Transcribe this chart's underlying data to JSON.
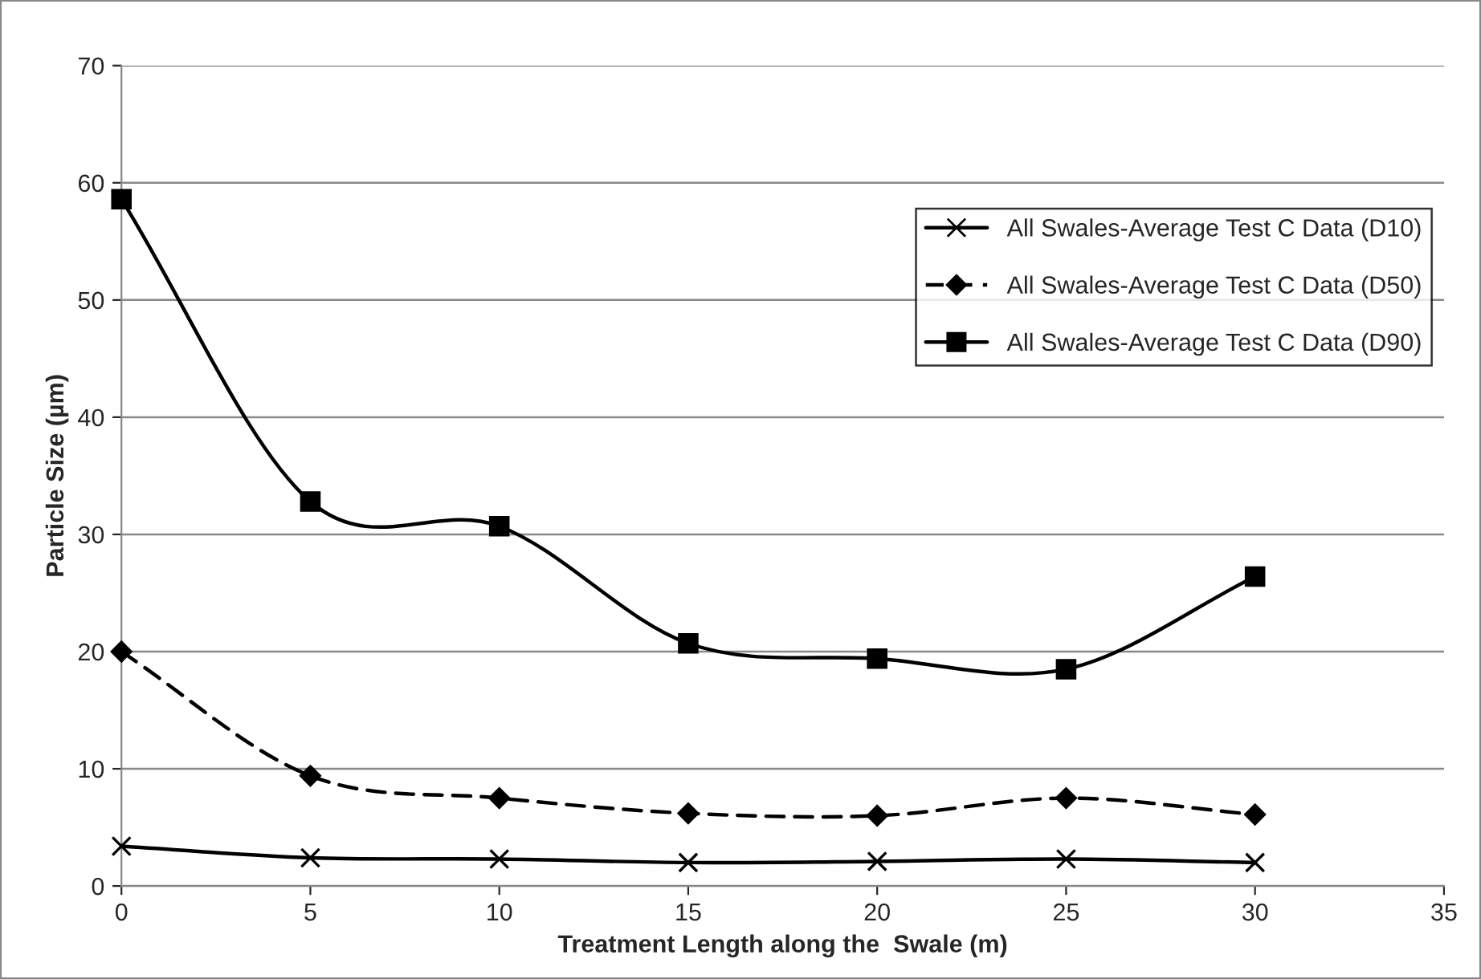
{
  "chart_data": {
    "type": "line",
    "xlabel": "Treatment Length along the  Swale (m)",
    "ylabel": "Particle Size (µm)",
    "x": [
      0,
      5,
      10,
      15,
      20,
      25,
      30
    ],
    "series": [
      {
        "name": "All Swales-Average Test C Data (D10)",
        "color": "#000000",
        "marker": "cross",
        "line_style": "solid",
        "values": [
          3.4,
          2.4,
          2.3,
          2.0,
          2.1,
          2.3,
          2.0
        ]
      },
      {
        "name": "All Swales-Average Test C Data (D50)",
        "color": "#000000",
        "marker": "diamond",
        "line_style": "dashed",
        "values": [
          20.0,
          9.4,
          7.5,
          6.2,
          6.0,
          7.5,
          6.1
        ]
      },
      {
        "name": "All Swales-Average Test C Data (D90)",
        "color": "#000000",
        "marker": "square",
        "line_style": "solid",
        "values": [
          58.6,
          32.8,
          30.7,
          20.7,
          19.4,
          18.5,
          26.4
        ]
      }
    ],
    "xlim": [
      0,
      35
    ],
    "xticks": [
      0,
      5,
      10,
      15,
      20,
      25,
      30,
      35
    ],
    "ylim": [
      0,
      70
    ],
    "yticks": [
      0,
      10,
      20,
      30,
      40,
      50,
      60,
      70
    ],
    "grid": "y",
    "legend": "right"
  }
}
